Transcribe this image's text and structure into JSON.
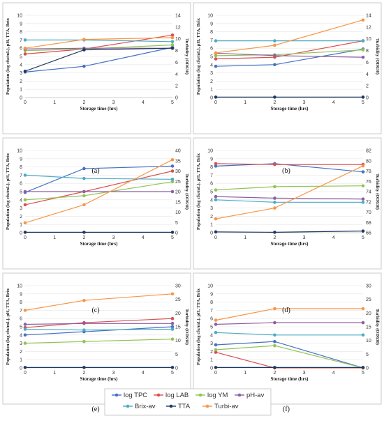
{
  "legend": [
    {
      "name": "log TPC",
      "color": "#4472C4"
    },
    {
      "name": "log LAB",
      "color": "#D94F4F"
    },
    {
      "name": "log YM",
      "color": "#92C353"
    },
    {
      "name": "pH-av",
      "color": "#8E5EA2"
    },
    {
      "name": "Brix-av",
      "color": "#4BACC6"
    },
    {
      "name": "TTA",
      "color": "#1F3864"
    },
    {
      "name": "Turbi-av",
      "color": "#F79646"
    }
  ],
  "chart_data": [
    {
      "type": "line",
      "panel_label": "(a)",
      "xlabel": "Storage time (hrs)",
      "ylabel": "Population (log cfu/mL), pH, TTA, Brix",
      "y2label": "Turbidity (OD630)",
      "x": [
        0,
        2,
        5
      ],
      "xlim": [
        0,
        5
      ],
      "xticks": [
        0,
        1,
        2,
        3,
        4,
        5
      ],
      "ylim": [
        0,
        10
      ],
      "yticks": [
        0,
        1,
        2,
        3,
        4,
        5,
        6,
        7,
        8,
        9,
        10
      ],
      "y2lim": [
        0,
        14
      ],
      "y2ticks": [
        0,
        2,
        4,
        6,
        8,
        10,
        12,
        14
      ],
      "series": [
        {
          "name": "log TPC",
          "values": [
            3.1,
            3.8,
            6.1
          ]
        },
        {
          "name": "log LAB",
          "values": [
            5.3,
            5.9,
            7.6
          ]
        },
        {
          "name": "log YM",
          "values": [
            5.7,
            5.9,
            6.4
          ]
        },
        {
          "name": "pH-av",
          "values": [
            5.9,
            6.0,
            6.0
          ]
        },
        {
          "name": "Brix-av",
          "values": [
            7.0,
            7.0,
            6.8
          ]
        },
        {
          "name": "TTA",
          "values": [
            3.2,
            5.8,
            6.0
          ]
        },
        {
          "name": "Turbi-av",
          "values": [
            8.4,
            9.9,
            10.2
          ],
          "axis": "right"
        }
      ]
    },
    {
      "type": "line",
      "panel_label": "(b)",
      "xlabel": "Storage time (hrs)",
      "ylabel": "Population (log cfu/mL), pH, TTA, Brix",
      "y2label": "Turbidity (OD630)",
      "x": [
        0,
        2,
        5
      ],
      "xlim": [
        0,
        5
      ],
      "xticks": [
        0,
        1,
        2,
        3,
        4,
        5
      ],
      "ylim": [
        0,
        10
      ],
      "yticks": [
        0,
        1,
        2,
        3,
        4,
        5,
        6,
        7,
        8,
        9,
        10
      ],
      "y2lim": [
        0,
        14
      ],
      "y2ticks": [
        0,
        2,
        4,
        6,
        8,
        10,
        12,
        14
      ],
      "series": [
        {
          "name": "log TPC",
          "values": [
            3.8,
            4.0,
            5.9
          ]
        },
        {
          "name": "log LAB",
          "values": [
            4.7,
            4.9,
            6.9
          ]
        },
        {
          "name": "log YM",
          "values": [
            5.1,
            5.2,
            5.8
          ]
        },
        {
          "name": "pH-av",
          "values": [
            5.4,
            5.1,
            4.9
          ]
        },
        {
          "name": "Brix-av",
          "values": [
            6.9,
            6.9,
            6.9
          ]
        },
        {
          "name": "TTA",
          "values": [
            0.05,
            0.05,
            0.05
          ]
        },
        {
          "name": "Turbi-av",
          "values": [
            7.6,
            8.9,
            13.2
          ],
          "axis": "right"
        }
      ]
    },
    {
      "type": "line",
      "panel_label": "(c)",
      "xlabel": "Storage time (hrs)",
      "ylabel": "Population (log cfu/mL), pH, TTA, Brix",
      "y2label": "Turbidity (OD630)",
      "x": [
        0,
        2,
        5
      ],
      "xlim": [
        0,
        5
      ],
      "xticks": [
        0,
        1,
        2,
        3,
        4,
        5
      ],
      "ylim": [
        0,
        10
      ],
      "yticks": [
        0,
        1,
        2,
        3,
        4,
        5,
        6,
        7,
        8,
        9,
        10
      ],
      "y2lim": [
        0,
        40
      ],
      "y2ticks": [
        0,
        5,
        10,
        15,
        20,
        25,
        30,
        35,
        40
      ],
      "series": [
        {
          "name": "log TPC",
          "values": [
            4.9,
            7.8,
            8.1
          ]
        },
        {
          "name": "log LAB",
          "values": [
            3.4,
            5.0,
            7.5
          ]
        },
        {
          "name": "log YM",
          "values": [
            4.0,
            4.5,
            6.2
          ]
        },
        {
          "name": "pH-av",
          "values": [
            5.0,
            5.0,
            5.0
          ]
        },
        {
          "name": "Brix-av",
          "values": [
            7.0,
            6.6,
            6.5
          ]
        },
        {
          "name": "TTA",
          "values": [
            0.05,
            0.05,
            0.05
          ]
        },
        {
          "name": "Turbi-av",
          "values": [
            4.8,
            13.6,
            35.5
          ],
          "axis": "right"
        }
      ]
    },
    {
      "type": "line",
      "panel_label": "(d)",
      "xlabel": "Storage time (hrs)",
      "ylabel": "Population (log cfu/mL), pH, TTA, Brix",
      "y2label": "Turbidity (OD630)",
      "x": [
        0,
        2,
        5
      ],
      "xlim": [
        0,
        5
      ],
      "xticks": [
        0,
        1,
        2,
        3,
        4,
        5
      ],
      "ylim": [
        0,
        10
      ],
      "yticks": [
        0,
        1,
        2,
        3,
        4,
        5,
        6,
        7,
        8,
        9,
        10
      ],
      "y2lim": [
        66,
        82
      ],
      "y2ticks": [
        66,
        68,
        70,
        72,
        74,
        76,
        78,
        80,
        82
      ],
      "series": [
        {
          "name": "log TPC",
          "values": [
            8.1,
            8.4,
            7.4
          ]
        },
        {
          "name": "log LAB",
          "values": [
            8.4,
            8.3,
            8.3
          ]
        },
        {
          "name": "log YM",
          "values": [
            5.2,
            5.6,
            5.7
          ]
        },
        {
          "name": "pH-av",
          "values": [
            4.4,
            4.2,
            4.1
          ]
        },
        {
          "name": "Brix-av",
          "values": [
            4.0,
            3.7,
            3.7
          ]
        },
        {
          "name": "TTA",
          "values": [
            0.1,
            0.05,
            0.2
          ]
        },
        {
          "name": "Turbi-av",
          "values": [
            68.7,
            70.8,
            79.0
          ],
          "axis": "right"
        }
      ]
    },
    {
      "type": "line",
      "panel_label": "(e)",
      "xlabel": "Storage time (hrs)",
      "ylabel": "Population (log cfu/mL), pH, TTA, Brix",
      "y2label": "Turbidity (OD630)",
      "x": [
        0,
        2,
        5
      ],
      "xlim": [
        0,
        5
      ],
      "xticks": [
        0,
        1,
        2,
        3,
        4,
        5
      ],
      "ylim": [
        0,
        10
      ],
      "yticks": [
        0,
        1,
        2,
        3,
        4,
        5,
        6,
        7,
        8,
        9,
        10
      ],
      "y2lim": [
        0,
        30
      ],
      "y2ticks": [
        0,
        5,
        10,
        15,
        20,
        25,
        30
      ],
      "series": [
        {
          "name": "log TPC",
          "values": [
            4.0,
            4.4,
            5.0
          ]
        },
        {
          "name": "log LAB",
          "values": [
            4.9,
            5.5,
            6.0
          ]
        },
        {
          "name": "log YM",
          "values": [
            3.0,
            3.2,
            3.5
          ]
        },
        {
          "name": "pH-av",
          "values": [
            5.3,
            5.4,
            5.4
          ]
        },
        {
          "name": "Brix-av",
          "values": [
            4.7,
            4.6,
            4.7
          ]
        },
        {
          "name": "TTA",
          "values": [
            0.05,
            0.05,
            0.05
          ]
        },
        {
          "name": "Turbi-av",
          "values": [
            21.0,
            24.6,
            27.0
          ],
          "axis": "right"
        }
      ]
    },
    {
      "type": "line",
      "panel_label": "(f)",
      "xlabel": "Storage time (hrs)",
      "ylabel": "Population (log cfu/mL), pH, TTA, Brix",
      "y2label": "Turbidity (OD630)",
      "x": [
        0,
        2,
        5
      ],
      "xlim": [
        0,
        5
      ],
      "xticks": [
        0,
        1,
        2,
        3,
        4,
        5
      ],
      "ylim": [
        0,
        10
      ],
      "yticks": [
        0,
        1,
        2,
        3,
        4,
        5,
        6,
        7,
        8,
        9,
        10
      ],
      "y2lim": [
        0,
        30
      ],
      "y2ticks": [
        0,
        5,
        10,
        15,
        20,
        25,
        30
      ],
      "series": [
        {
          "name": "log TPC",
          "values": [
            2.8,
            3.2,
            0.0
          ]
        },
        {
          "name": "log LAB",
          "values": [
            1.9,
            0.0,
            0.0
          ]
        },
        {
          "name": "log YM",
          "values": [
            2.2,
            2.7,
            0.0
          ]
        },
        {
          "name": "pH-av",
          "values": [
            5.3,
            5.5,
            5.5
          ]
        },
        {
          "name": "Brix-av",
          "values": [
            4.3,
            4.0,
            4.0
          ]
        },
        {
          "name": "TTA",
          "values": [
            0.05,
            0.05,
            0.05
          ]
        },
        {
          "name": "Turbi-av",
          "values": [
            17.4,
            21.6,
            21.6
          ],
          "axis": "right"
        }
      ]
    }
  ]
}
